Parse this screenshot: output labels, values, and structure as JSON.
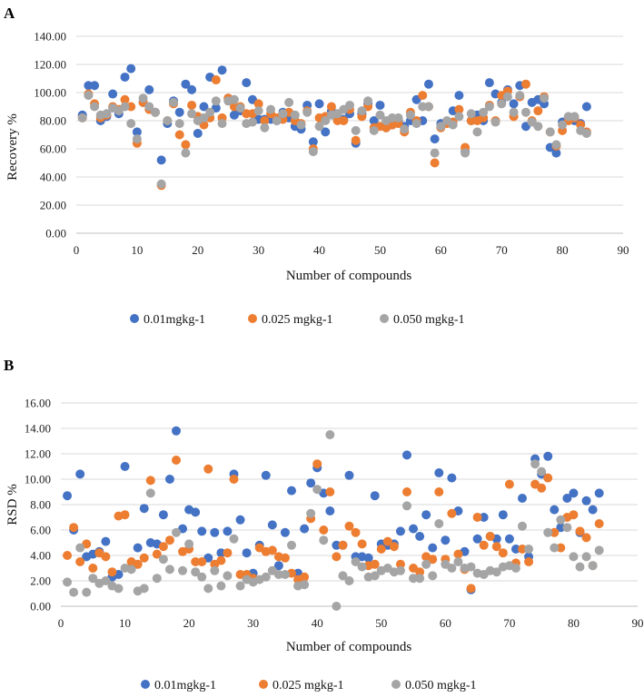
{
  "colors": {
    "s1": "#4472C4",
    "s2": "#ED7D31",
    "s3": "#A5A5A5",
    "grid": "#d9d9d9",
    "axis": "#bfbfbf"
  },
  "chart_data": [
    {
      "type": "scatter",
      "panel_label": "A",
      "xlabel": "Number of compounds",
      "ylabel": "Recovery %",
      "xlim": [
        0,
        90
      ],
      "ylim": [
        0,
        140
      ],
      "x_ticks": [
        "0",
        "10",
        "20",
        "30",
        "40",
        "50",
        "60",
        "70",
        "80",
        "90"
      ],
      "y_ticks": [
        "0.00",
        "20.00",
        "40.00",
        "60.00",
        "80.00",
        "100.00",
        "120.00",
        "140.00"
      ],
      "grid": "horizontal",
      "legend_position": "bottom",
      "series": [
        {
          "name": "0.01mgkg-1",
          "color": "#4472C4",
          "x": [
            1,
            2,
            3,
            4,
            5,
            6,
            7,
            8,
            9,
            10,
            11,
            12,
            13,
            14,
            15,
            16,
            17,
            18,
            19,
            20,
            21,
            22,
            23,
            24,
            25,
            26,
            27,
            28,
            29,
            30,
            31,
            32,
            33,
            34,
            35,
            36,
            37,
            38,
            39,
            40,
            41,
            42,
            43,
            44,
            45,
            46,
            47,
            48,
            49,
            50,
            51,
            52,
            53,
            54,
            55,
            56,
            57,
            58,
            59,
            60,
            61,
            62,
            63,
            64,
            65,
            66,
            67,
            68,
            69,
            70,
            71,
            72,
            73,
            74,
            75,
            76,
            77,
            78,
            79,
            80,
            81,
            82,
            83,
            84
          ],
          "y": [
            84,
            105,
            105,
            80,
            83,
            99,
            85,
            111,
            117,
            72,
            93,
            102,
            86,
            52,
            78,
            94,
            86,
            106,
            102,
            71,
            90,
            111,
            89,
            116,
            96,
            84,
            87,
            107,
            95,
            81,
            81,
            81,
            80,
            86,
            82,
            76,
            74,
            91,
            65,
            92,
            72,
            87,
            81,
            81,
            85,
            64,
            85,
            92,
            80,
            91,
            75,
            77,
            80,
            76,
            80,
            95,
            80,
            106,
            67,
            78,
            79,
            87,
            98,
            58,
            80,
            84,
            80,
            107,
            99,
            93,
            102,
            92,
            105,
            76,
            93,
            95,
            92,
            61,
            57,
            79,
            82,
            80,
            78,
            90
          ]
        },
        {
          "name": "0.025 mgkg-1",
          "color": "#ED7D31",
          "x": [
            1,
            2,
            3,
            4,
            5,
            6,
            7,
            8,
            9,
            10,
            11,
            12,
            13,
            14,
            15,
            16,
            17,
            18,
            19,
            20,
            21,
            22,
            23,
            24,
            25,
            26,
            27,
            28,
            29,
            30,
            31,
            32,
            33,
            34,
            35,
            36,
            37,
            38,
            39,
            40,
            41,
            42,
            43,
            44,
            45,
            46,
            47,
            48,
            49,
            50,
            51,
            52,
            53,
            54,
            55,
            56,
            57,
            58,
            59,
            60,
            61,
            62,
            63,
            64,
            65,
            66,
            67,
            68,
            69,
            70,
            71,
            72,
            73,
            74,
            75,
            76,
            77,
            78,
            79,
            80,
            81,
            82,
            83,
            84
          ],
          "y": [
            82,
            99,
            92,
            82,
            84,
            90,
            88,
            95,
            90,
            64,
            93,
            88,
            86,
            34,
            80,
            92,
            70,
            63,
            91,
            83,
            77,
            82,
            109,
            82,
            96,
            90,
            90,
            85,
            85,
            92,
            80,
            85,
            82,
            81,
            86,
            80,
            78,
            87,
            60,
            82,
            83,
            90,
            80,
            80,
            88,
            66,
            83,
            90,
            75,
            76,
            75,
            77,
            78,
            72,
            86,
            80,
            98,
            90,
            50,
            75,
            78,
            79,
            88,
            61,
            80,
            80,
            82,
            91,
            80,
            98,
            101,
            83,
            97,
            106,
            80,
            87,
            97,
            72,
            62,
            73,
            80,
            82,
            77,
            72
          ]
        },
        {
          "name": "0.050 mgkg-1",
          "color": "#A5A5A5",
          "x": [
            1,
            2,
            3,
            4,
            5,
            6,
            7,
            8,
            9,
            10,
            11,
            12,
            13,
            14,
            15,
            16,
            17,
            18,
            19,
            20,
            21,
            22,
            23,
            24,
            25,
            26,
            27,
            28,
            29,
            30,
            31,
            32,
            33,
            34,
            35,
            36,
            37,
            38,
            39,
            40,
            41,
            42,
            43,
            44,
            45,
            46,
            47,
            48,
            49,
            50,
            51,
            52,
            53,
            54,
            55,
            56,
            57,
            58,
            59,
            60,
            61,
            62,
            63,
            64,
            65,
            66,
            67,
            68,
            69,
            70,
            71,
            72,
            73,
            74,
            75,
            76,
            77,
            78,
            79,
            80,
            81,
            82,
            83,
            84
          ],
          "y": [
            82,
            98,
            90,
            84,
            85,
            89,
            87,
            90,
            78,
            67,
            96,
            90,
            86,
            35,
            80,
            93,
            78,
            57,
            85,
            80,
            82,
            86,
            94,
            78,
            94,
            95,
            89,
            78,
            79,
            87,
            75,
            88,
            80,
            85,
            93,
            84,
            77,
            86,
            58,
            76,
            80,
            84,
            85,
            88,
            91,
            73,
            87,
            94,
            73,
            84,
            80,
            82,
            82,
            74,
            84,
            78,
            90,
            90,
            57,
            76,
            80,
            77,
            83,
            57,
            85,
            72,
            86,
            90,
            79,
            92,
            97,
            86,
            98,
            86,
            79,
            76,
            96,
            72,
            63,
            77,
            83,
            83,
            73,
            71
          ]
        }
      ]
    },
    {
      "type": "scatter",
      "panel_label": "B",
      "xlabel": "Number of compounds",
      "ylabel": "RSD %",
      "xlim": [
        0,
        90
      ],
      "ylim": [
        0,
        16
      ],
      "x_ticks": [
        "0",
        "10",
        "20",
        "30",
        "40",
        "50",
        "60",
        "70",
        "80",
        "90"
      ],
      "y_ticks": [
        "0.00",
        "2.00",
        "4.00",
        "6.00",
        "8.00",
        "10.00",
        "12.00",
        "14.00",
        "16.00"
      ],
      "grid": "horizontal",
      "legend_position": "bottom",
      "series": [
        {
          "name": "0.01mgkg-1",
          "color": "#4472C4",
          "x": [
            1,
            2,
            3,
            4,
            5,
            6,
            7,
            8,
            9,
            10,
            11,
            12,
            13,
            14,
            15,
            16,
            17,
            18,
            19,
            20,
            21,
            22,
            23,
            24,
            25,
            26,
            27,
            28,
            29,
            30,
            31,
            32,
            33,
            34,
            35,
            36,
            37,
            38,
            39,
            40,
            41,
            42,
            43,
            44,
            45,
            46,
            47,
            48,
            49,
            50,
            51,
            52,
            53,
            54,
            55,
            56,
            57,
            58,
            59,
            60,
            61,
            62,
            63,
            64,
            65,
            66,
            67,
            68,
            69,
            70,
            71,
            72,
            73,
            74,
            75,
            76,
            77,
            78,
            79,
            80,
            81,
            82,
            83,
            84
          ],
          "y": [
            8.7,
            6.0,
            10.4,
            3.9,
            4.1,
            4.3,
            5.1,
            2.3,
            2.5,
            11.0,
            3.0,
            4.6,
            7.7,
            5.0,
            4.9,
            7.2,
            10.0,
            13.8,
            6.1,
            7.6,
            7.4,
            5.9,
            3.8,
            5.8,
            4.2,
            5.9,
            10.4,
            6.8,
            4.2,
            2.6,
            4.8,
            10.3,
            6.4,
            3.2,
            5.8,
            9.1,
            2.6,
            6.1,
            9.7,
            10.9,
            8.9,
            7.5,
            4.8,
            4.8,
            10.3,
            3.9,
            3.9,
            3.8,
            8.7,
            4.9,
            4.8,
            4.9,
            5.9,
            11.9,
            6.1,
            5.5,
            7.2,
            4.6,
            10.5,
            5.2,
            10.1,
            7.5,
            4.3,
            1.3,
            5.3,
            7.0,
            5.5,
            5.3,
            7.2,
            5.3,
            4.5,
            8.5,
            3.9,
            11.6,
            10.4,
            11.8,
            7.6,
            6.2,
            8.5,
            8.9,
            5.8,
            8.3,
            7.6,
            8.9
          ]
        },
        {
          "name": "0.025 mgkg-1",
          "color": "#ED7D31",
          "x": [
            1,
            2,
            3,
            4,
            5,
            6,
            7,
            8,
            9,
            10,
            11,
            12,
            13,
            14,
            15,
            16,
            17,
            18,
            19,
            20,
            21,
            22,
            23,
            24,
            25,
            26,
            27,
            28,
            29,
            30,
            31,
            32,
            33,
            34,
            35,
            36,
            37,
            38,
            39,
            40,
            41,
            42,
            43,
            44,
            45,
            46,
            47,
            48,
            49,
            50,
            51,
            52,
            53,
            54,
            55,
            56,
            57,
            58,
            59,
            60,
            61,
            62,
            63,
            64,
            65,
            66,
            67,
            68,
            69,
            70,
            71,
            72,
            73,
            74,
            75,
            76,
            77,
            78,
            79,
            80,
            81,
            82,
            83,
            84
          ],
          "y": [
            4.0,
            6.2,
            3.5,
            4.9,
            3.0,
            4.2,
            3.9,
            2.7,
            7.1,
            7.2,
            3.5,
            3.3,
            3.8,
            9.9,
            4.1,
            4.7,
            5.2,
            11.5,
            4.3,
            4.5,
            3.5,
            3.5,
            10.8,
            3.3,
            3.6,
            4.2,
            10.0,
            2.5,
            2.5,
            2.2,
            4.6,
            4.3,
            4.4,
            3.9,
            3.8,
            2.6,
            2.1,
            2.3,
            6.9,
            11.2,
            6.0,
            9.0,
            3.9,
            4.8,
            6.3,
            5.8,
            4.9,
            3.2,
            3.3,
            4.5,
            5.1,
            4.7,
            3.3,
            9.0,
            3.0,
            2.7,
            3.9,
            3.7,
            9.0,
            3.7,
            7.3,
            4.1,
            2.9,
            1.4,
            7.0,
            4.8,
            5.5,
            4.7,
            4.2,
            9.6,
            3.4,
            4.5,
            3.5,
            9.6,
            9.3,
            10.1,
            5.8,
            4.6,
            7.0,
            7.2,
            5.9,
            5.4,
            3.2,
            6.5
          ]
        },
        {
          "name": "0.050 mgkg-1",
          "color": "#A5A5A5",
          "x": [
            1,
            2,
            3,
            4,
            5,
            6,
            7,
            8,
            9,
            10,
            11,
            12,
            13,
            14,
            15,
            16,
            17,
            18,
            19,
            20,
            21,
            22,
            23,
            24,
            25,
            26,
            27,
            28,
            29,
            30,
            31,
            32,
            33,
            34,
            35,
            36,
            37,
            38,
            39,
            40,
            41,
            42,
            43,
            44,
            45,
            46,
            47,
            48,
            49,
            50,
            51,
            52,
            53,
            54,
            55,
            56,
            57,
            58,
            59,
            60,
            61,
            62,
            63,
            64,
            65,
            66,
            67,
            68,
            69,
            70,
            71,
            72,
            73,
            74,
            75,
            76,
            77,
            78,
            79,
            80,
            81,
            82,
            83,
            84
          ],
          "y": [
            1.9,
            1.1,
            4.6,
            1.1,
            2.2,
            1.8,
            2.0,
            1.6,
            1.4,
            3.0,
            2.9,
            1.2,
            1.4,
            8.9,
            2.2,
            3.7,
            2.9,
            5.8,
            2.8,
            4.9,
            2.7,
            2.3,
            1.4,
            2.8,
            1.6,
            2.4,
            5.3,
            1.6,
            2.1,
            1.9,
            2.1,
            2.3,
            2.8,
            2.5,
            2.5,
            4.8,
            1.6,
            1.7,
            7.3,
            9.2,
            5.2,
            13.5,
            0.0,
            2.4,
            2.0,
            3.5,
            3.1,
            2.3,
            2.4,
            2.8,
            3.0,
            2.7,
            2.8,
            7.9,
            2.2,
            2.2,
            3.3,
            2.4,
            6.5,
            3.3,
            3.0,
            3.5,
            3.0,
            3.1,
            2.6,
            2.5,
            2.8,
            2.7,
            3.1,
            3.2,
            3.0,
            6.3,
            4.5,
            11.2,
            10.6,
            5.8,
            4.6,
            6.8,
            6.2,
            3.9,
            3.1,
            3.9,
            3.2,
            4.4
          ]
        }
      ]
    }
  ]
}
